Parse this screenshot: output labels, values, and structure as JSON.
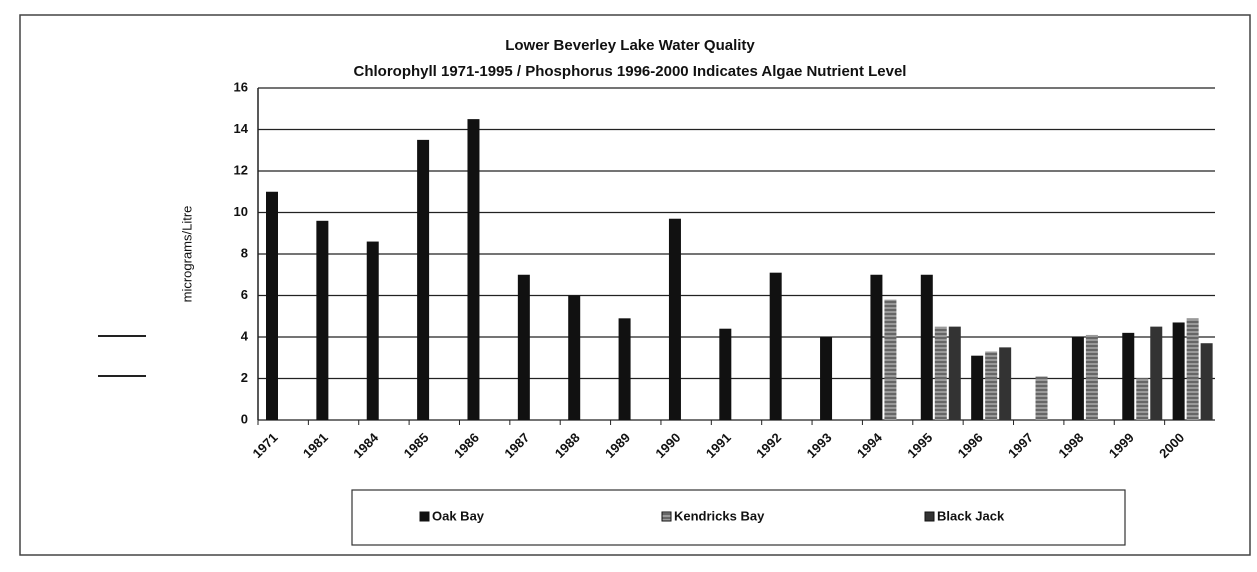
{
  "chart_data": {
    "type": "bar",
    "title": "Lower Beverley Lake Water Quality",
    "subtitle": "Chlorophyll 1971-1995 / Phosphorus 1996-2000 Indicates Algae Nutrient Level",
    "y_label": "micrograms/Litre",
    "categories": [
      "1971",
      "1981",
      "1984",
      "1985",
      "1986",
      "1987",
      "1988",
      "1989",
      "1990",
      "1991",
      "1992",
      "1993",
      "1994",
      "1995",
      "1996",
      "1997",
      "1998",
      "1999",
      "2000"
    ],
    "series": [
      {
        "name": "Oak Bay",
        "color": "#111111",
        "values": [
          11,
          9.6,
          8.6,
          13.5,
          14.5,
          7,
          6,
          4.9,
          9.7,
          4.4,
          7.1,
          4,
          7,
          7,
          3.1,
          null,
          4,
          4.2,
          4.7
        ]
      },
      {
        "name": "Kendricks Bay",
        "color": "#8a8a8a",
        "values": [
          null,
          null,
          null,
          null,
          null,
          null,
          null,
          null,
          null,
          null,
          null,
          null,
          5.8,
          4.5,
          3.3,
          2.1,
          4.1,
          2,
          4.9
        ]
      },
      {
        "name": "Black Jack",
        "color": "#333333",
        "values": [
          null,
          null,
          null,
          null,
          null,
          null,
          null,
          null,
          null,
          null,
          null,
          null,
          null,
          4.5,
          3.5,
          null,
          null,
          4.5,
          3.7
        ]
      }
    ],
    "ylim": [
      0,
      16
    ],
    "yticks": [
      0,
      2,
      4,
      6,
      8,
      10,
      12,
      14,
      16
    ],
    "grid": true,
    "legend": "bottom"
  }
}
